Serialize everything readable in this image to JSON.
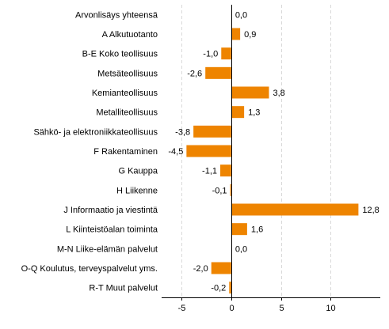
{
  "chart_data": {
    "type": "bar",
    "orientation": "horizontal",
    "categories": [
      "Arvonlisäys yhteensä",
      "A Alkutuotanto",
      "B-E Koko teollisuus",
      "Metsäteollisuus",
      "Kemianteollisuus",
      "Metalliteollisuus",
      "Sähkö- ja elektroniikkateollisuus",
      "F Rakentaminen",
      "G Kauppa",
      "H Liikenne",
      "J Informaatio ja viestintä",
      "L Kiinteistöalan toiminta",
      "M-N Liike-elämän palvelut",
      "O-Q Koulutus, terveyspalvelut yms.",
      "R-T Muut palvelut"
    ],
    "values": [
      0.0,
      0.9,
      -1.0,
      -2.6,
      3.8,
      1.3,
      -3.8,
      -4.5,
      -1.1,
      -0.1,
      12.8,
      1.6,
      0.0,
      -2.0,
      -0.2
    ],
    "value_labels": [
      "0,0",
      "0,9",
      "-1,0",
      "-2,6",
      "3,8",
      "1,3",
      "-3,8",
      "-4,5",
      "-1,1",
      "-0,1",
      "12,8",
      "1,6",
      "0,0",
      "-2,0",
      "-0,2"
    ],
    "xlim": [
      -7,
      15
    ],
    "xticks": [
      -5,
      0,
      5,
      10
    ],
    "xtick_labels": [
      "-5",
      "0",
      "5",
      "10"
    ],
    "title": "",
    "xlabel": "",
    "ylabel": "",
    "grid": "vertical dashed",
    "legend": "none",
    "bar_color": "#ee8400"
  }
}
